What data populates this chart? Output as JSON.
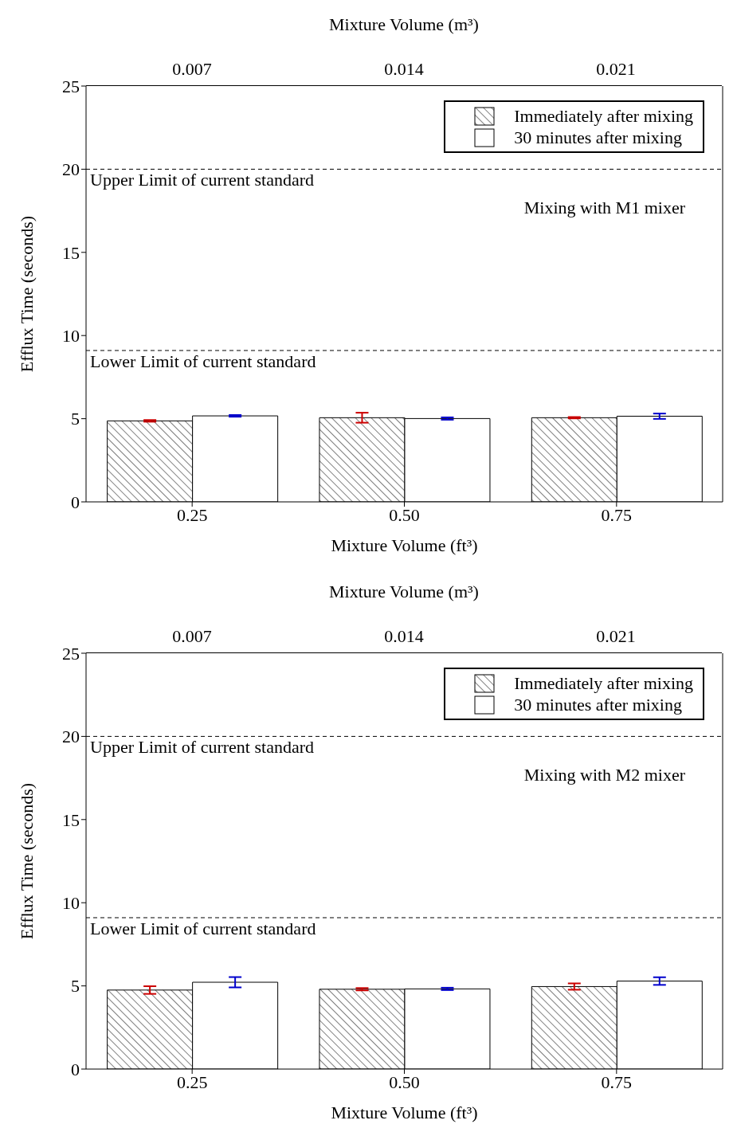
{
  "chart_data": [
    {
      "type": "bar",
      "categories": [
        "0.25",
        "0.50",
        "0.75"
      ],
      "xlabel": "Mixture Volume (ft³)",
      "ylabel": "Efflux Time (seconds)",
      "x2label": "Mixture Volume (m³)",
      "x2lim": [
        0.0035,
        0.0245
      ],
      "x2ticks": [
        0.007,
        0.014,
        0.021
      ],
      "ylim": [
        0,
        25
      ],
      "yticks": [
        0,
        5,
        10,
        15,
        20,
        25
      ],
      "grid": false,
      "legend": "top right",
      "series": [
        {
          "name": "Immediately after mixing",
          "color": "#000000",
          "values": [
            4.87,
            5.06,
            5.06
          ],
          "errors": [
            0.05,
            0.3,
            0.04
          ]
        },
        {
          "name": "30 minutes after mixing",
          "color": "#ffffff",
          "values": [
            5.17,
            5.01,
            5.15
          ],
          "errors": [
            0.05,
            0.07,
            0.16
          ]
        }
      ],
      "ref_lines": [
        {
          "axis": "y",
          "value": 20,
          "label": "Upper Limit of current standard",
          "line_style": "dashed"
        },
        {
          "axis": "y",
          "value": 9.1,
          "label": "Lower Limit of current standard",
          "line_style": "dashed"
        }
      ],
      "annotations": [
        "Mixing with M1 mixer"
      ]
    },
    {
      "type": "bar",
      "categories": [
        "0.25",
        "0.50",
        "0.75"
      ],
      "xlabel": "Mixture Volume (ft³)",
      "ylabel": "Efflux Time (seconds)",
      "x2label": "Mixture Volume (m³)",
      "x2lim": [
        0.0035,
        0.0245
      ],
      "x2ticks": [
        0.007,
        0.014,
        0.021
      ],
      "ylim": [
        0,
        25
      ],
      "yticks": [
        0,
        5,
        10,
        15,
        20,
        25
      ],
      "grid": false,
      "legend": "top right",
      "series": [
        {
          "name": "Immediately after mixing",
          "color": "#000000",
          "values": [
            4.75,
            4.8,
            4.96
          ],
          "errors": [
            0.23,
            0.07,
            0.19
          ]
        },
        {
          "name": "30 minutes after mixing",
          "color": "#ffffff",
          "values": [
            5.22,
            4.82,
            5.29
          ],
          "errors": [
            0.31,
            0.07,
            0.23
          ]
        }
      ],
      "ref_lines": [
        {
          "axis": "y",
          "value": 20,
          "label": "Upper Limit of current standard",
          "line_style": "dashed"
        },
        {
          "axis": "y",
          "value": 9.1,
          "label": "Lower Limit of current standard",
          "line_style": "dashed"
        }
      ],
      "annotations": [
        "Mixing with M2 mixer"
      ]
    }
  ]
}
